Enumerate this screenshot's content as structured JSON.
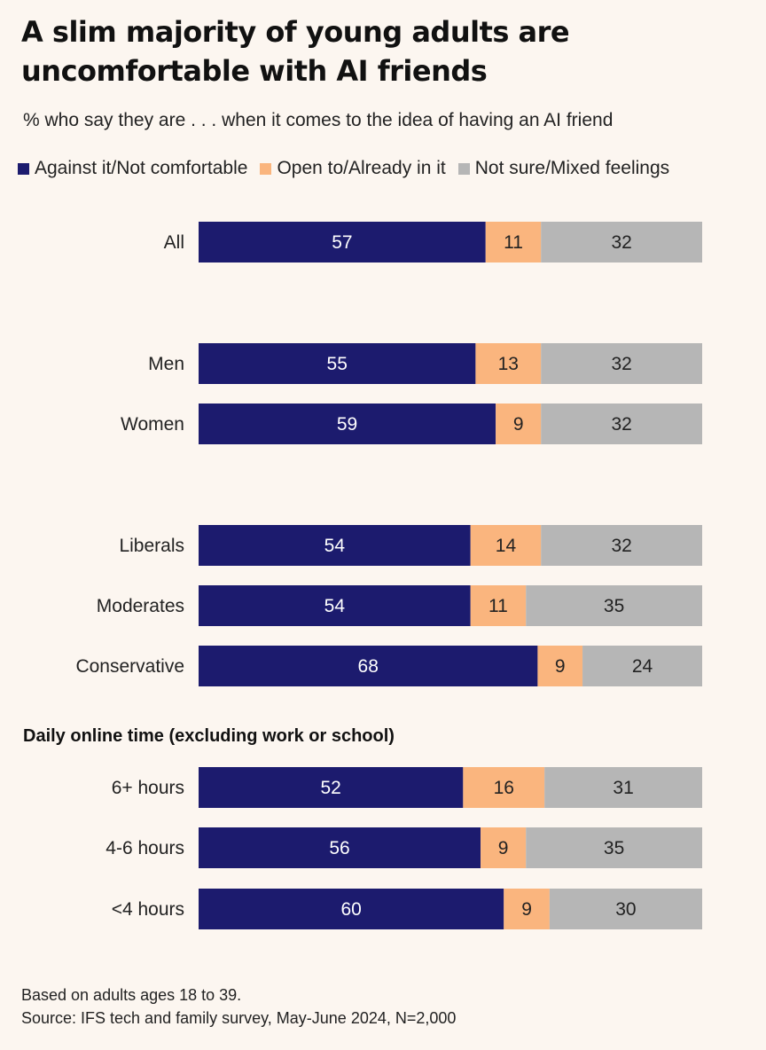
{
  "title": "A slim majority of young adults are uncomfortable with AI friends",
  "subtitle": "% who say they are . . . when it comes to the idea of having an AI friend",
  "legend": [
    {
      "label": "Against it/Not comfortable",
      "color": "#1c1b6e"
    },
    {
      "label": "Open to/Already in it",
      "color": "#fab57e"
    },
    {
      "label": "Not sure/Mixed feelings",
      "color": "#b6b6b6"
    }
  ],
  "colors": {
    "against": "#1c1b6e",
    "open": "#fab57e",
    "unsure": "#b6b6b6",
    "label_on_dark": "#ffffff",
    "label_on_light": "#222222"
  },
  "chart_data": {
    "type": "bar",
    "orientation": "horizontal",
    "stacked": true,
    "title": "A slim majority of young adults are uncomfortable with AI friends",
    "xlabel": "",
    "ylabel": "",
    "xlim": [
      0,
      100
    ],
    "series_names": [
      "Against it/Not comfortable",
      "Open to/Already in it",
      "Not sure/Mixed feelings"
    ],
    "groups": [
      {
        "heading": "",
        "rows": [
          {
            "label": "All",
            "values": [
              57,
              11,
              32
            ]
          }
        ]
      },
      {
        "heading": "",
        "rows": [
          {
            "label": "Men",
            "values": [
              55,
              13,
              32
            ]
          },
          {
            "label": "Women",
            "values": [
              59,
              9,
              32
            ]
          }
        ]
      },
      {
        "heading": "",
        "rows": [
          {
            "label": "Liberals",
            "values": [
              54,
              14,
              32
            ]
          },
          {
            "label": "Moderates",
            "values": [
              54,
              11,
              35
            ]
          },
          {
            "label": "Conservative",
            "values": [
              68,
              9,
              24
            ]
          }
        ]
      },
      {
        "heading": "Daily online time (excluding work or school)",
        "rows": [
          {
            "label": "6+ hours",
            "values": [
              52,
              16,
              31
            ]
          },
          {
            "label": "4-6 hours",
            "values": [
              56,
              9,
              35
            ]
          },
          {
            "label": "<4 hours",
            "values": [
              60,
              9,
              30
            ]
          }
        ]
      }
    ]
  },
  "footnote": {
    "line1": "Based on adults ages 18 to 39.",
    "line2": "Source: IFS tech and family survey, May-June 2024, N=2,000"
  }
}
